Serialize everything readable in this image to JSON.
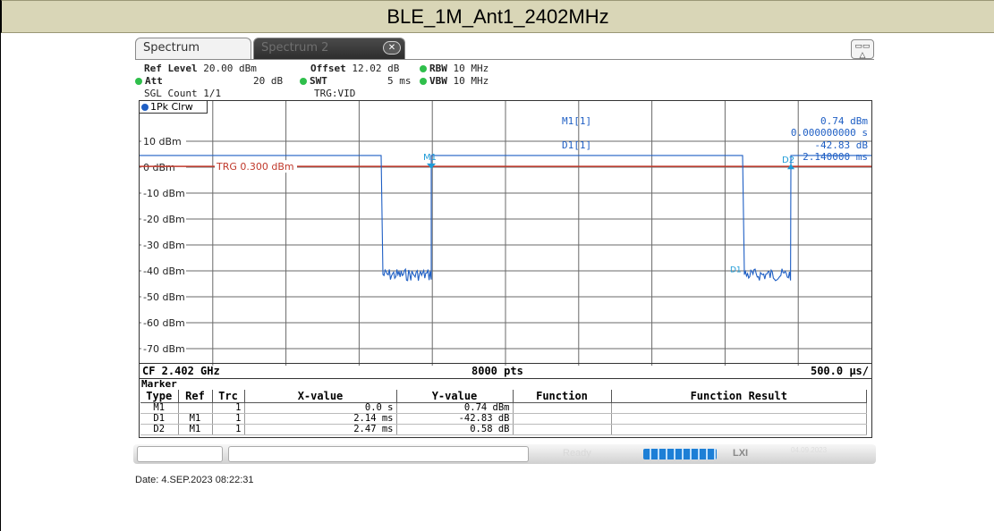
{
  "title": "BLE_1M_Ant1_2402MHz",
  "tabs": {
    "active": "Spectrum",
    "inactive": "Spectrum 2",
    "close_glyph": "✕"
  },
  "settings": {
    "ref_level_label": "Ref Level",
    "ref_level_value": "20.00 dBm",
    "offset_label": "Offset",
    "offset_value": "12.02 dB",
    "rbw_label": "RBW",
    "rbw_value": "10 MHz",
    "att_label": "Att",
    "att_value": "20 dB",
    "swt_label": "SWT",
    "swt_value": "5 ms",
    "vbw_label": "VBW",
    "vbw_value": "10 MHz",
    "sgl_count": "SGL Count 1/1",
    "trigger": "TRG:VID"
  },
  "trace_label": "1Pk Clrw",
  "plot": {
    "y_labels": [
      "10 dBm",
      "0 dBm",
      "-10 dBm",
      "-20 dBm",
      "-30 dBm",
      "-40 dBm",
      "-50 dBm",
      "-60 dBm",
      "-70 dBm"
    ],
    "trg_label": "TRG 0.300 dBm",
    "m1_label": "M1",
    "d2_label": "D2",
    "readout": {
      "m1_header": "M1[1]",
      "m1_level": "0.74 dBm",
      "m1_time": "0.000000000 s",
      "d1_header": "D1[1]",
      "d1_level": "-42.83 dB",
      "d1_time": "2.140000 ms"
    }
  },
  "footer": {
    "center_freq": "CF 2.402 GHz",
    "points": "8000 pts",
    "span_div": "500.0 µs/"
  },
  "marker_table": {
    "title": "Marker",
    "headers": [
      "Type",
      "Ref",
      "Trc",
      "X-value",
      "Y-value",
      "Function",
      "Function Result"
    ],
    "rows": [
      [
        "M1",
        "",
        "1",
        "0.0 s",
        "0.74 dBm",
        "",
        ""
      ],
      [
        "D1",
        "M1",
        "1",
        "2.14 ms",
        "-42.83 dB",
        "",
        ""
      ],
      [
        "D2",
        "M1",
        "1",
        "2.47 ms",
        "0.58 dB",
        "",
        ""
      ]
    ]
  },
  "status": {
    "ready": "Ready",
    "lxi": "LXI",
    "date": "04.09.2023"
  },
  "date_line": "Date: 4.SEP.2023  08:22:31",
  "colors": {
    "trace": "#1f5fc4",
    "trigger_line": "#c0392b",
    "title_bar": "#d9d6b7",
    "marker": "#1e9bd7"
  }
}
